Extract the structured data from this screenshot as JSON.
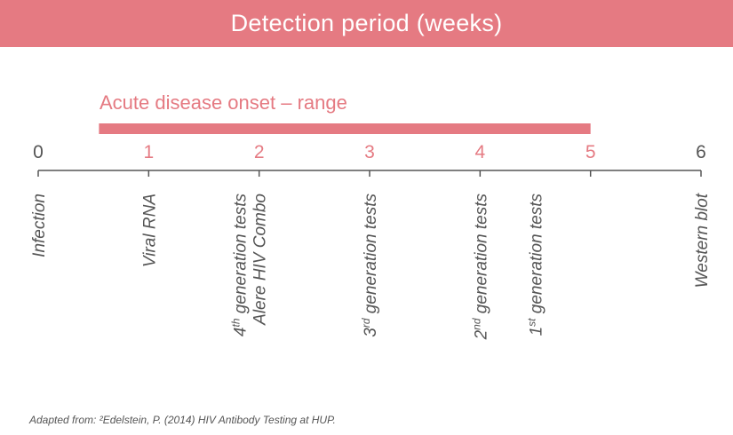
{
  "banner": {
    "title": "Detection period (weeks)"
  },
  "range_label": "Acute disease onset – range",
  "footnote": "Adapted from: ²Edelstein, P. (2014) HIV Antibody Testing at HUP.",
  "colors": {
    "accent": "#e57a82",
    "axis": "#555555",
    "text": "#555555",
    "background": "#ffffff"
  },
  "timeline": {
    "min": 0,
    "max": 6,
    "range": {
      "start": 0.55,
      "end": 5
    },
    "ticks": [
      {
        "value": 0,
        "label": "0",
        "in_range": false
      },
      {
        "value": 1,
        "label": "1",
        "in_range": true
      },
      {
        "value": 2,
        "label": "2",
        "in_range": true
      },
      {
        "value": 3,
        "label": "3",
        "in_range": true
      },
      {
        "value": 4,
        "label": "4",
        "in_range": true
      },
      {
        "value": 5,
        "label": "5",
        "in_range": true
      },
      {
        "value": 6,
        "label": "6",
        "in_range": false
      }
    ],
    "events": [
      {
        "name": "infection",
        "at": 0,
        "lines": [
          {
            "parts": [
              {
                "t": "Infection"
              }
            ]
          }
        ]
      },
      {
        "name": "viral-rna",
        "at": 1,
        "lines": [
          {
            "parts": [
              {
                "t": "Viral RNA"
              }
            ]
          }
        ]
      },
      {
        "name": "4th-generation-tests",
        "at": 2,
        "lines": [
          {
            "parts": [
              {
                "t": "4"
              },
              {
                "t": "th",
                "sup": true
              },
              {
                "t": " generation tests"
              }
            ]
          },
          {
            "parts": [
              {
                "t": "Alere HIV Combo"
              }
            ]
          }
        ]
      },
      {
        "name": "3rd-generation-tests",
        "at": 3,
        "lines": [
          {
            "parts": [
              {
                "t": "3"
              },
              {
                "t": "rd",
                "sup": true
              },
              {
                "t": " generation tests"
              }
            ]
          }
        ]
      },
      {
        "name": "2nd-generation-tests",
        "at": 4,
        "lines": [
          {
            "parts": [
              {
                "t": "2"
              },
              {
                "t": "nd",
                "sup": true
              },
              {
                "t": " generation tests"
              }
            ]
          }
        ]
      },
      {
        "name": "1st-generation-tests",
        "at": 4.5,
        "lines": [
          {
            "parts": [
              {
                "t": "1"
              },
              {
                "t": "st",
                "sup": true
              },
              {
                "t": " generation tests"
              }
            ]
          }
        ]
      },
      {
        "name": "western-blot",
        "at": 6,
        "lines": [
          {
            "parts": [
              {
                "t": "Western blot"
              }
            ]
          }
        ]
      }
    ]
  }
}
